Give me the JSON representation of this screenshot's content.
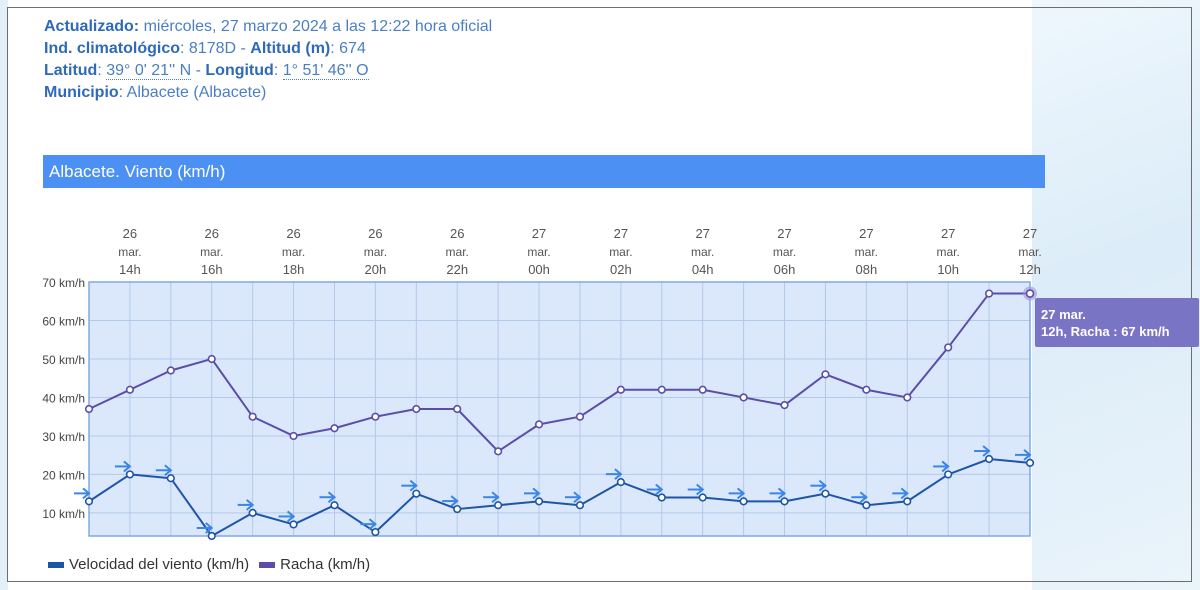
{
  "header": {
    "updated_label": "Actualizado:",
    "updated_value": " miércoles, 27 marzo 2024 a las 12:22 hora oficial",
    "station_label": "Ind. climatológico",
    "station_value": ": 8178D - ",
    "altitude_label": "Altitud (m)",
    "altitude_value": ": 674",
    "lat_label": "Latitud",
    "lat_sep": ": ",
    "lat_value": "39° 0' 21'' N",
    "lon_sep": " - ",
    "lon_label": "Longitud",
    "lon_colon": ": ",
    "lon_value": "1° 51' 46'' O",
    "municipio_label": "Municipio",
    "municipio_value": ":   Albacete (Albacete)"
  },
  "chart_title": "Albacete. Viento (km/h)",
  "tooltip": {
    "line1": "27 mar.",
    "line2": "12h, Racha : 67 km/h"
  },
  "legend": [
    {
      "label": "Velocidad del viento (km/h)",
      "color": "#1f55a8"
    },
    {
      "label": "Racha (km/h)",
      "color": "#5a4ea8"
    }
  ],
  "colors": {
    "plot_bg": "#dbe8fb",
    "plot_border": "#7fa9e8",
    "grid": "#b3c9e8",
    "wind": "#1f55a8",
    "gust": "#5a4ea8",
    "arrow": "#3a86e6"
  },
  "chart_data": {
    "type": "line",
    "x_top_labels": [
      [
        "26",
        "mar.",
        "14h"
      ],
      [
        "26",
        "mar.",
        "16h"
      ],
      [
        "26",
        "mar.",
        "18h"
      ],
      [
        "26",
        "mar.",
        "20h"
      ],
      [
        "26",
        "mar.",
        "22h"
      ],
      [
        "27",
        "mar.",
        "00h"
      ],
      [
        "27",
        "mar.",
        "02h"
      ],
      [
        "27",
        "mar.",
        "04h"
      ],
      [
        "27",
        "mar.",
        "06h"
      ],
      [
        "27",
        "mar.",
        "08h"
      ],
      [
        "27",
        "mar.",
        "10h"
      ],
      [
        "27",
        "mar.",
        "12h"
      ]
    ],
    "y_ticks": [
      "10 km/h",
      "20 km/h",
      "30 km/h",
      "40 km/h",
      "50 km/h",
      "60 km/h",
      "70 km/h"
    ],
    "ylim": [
      4,
      70
    ],
    "x_hours": [
      13,
      14,
      15,
      16,
      17,
      18,
      19,
      20,
      21,
      22,
      23,
      24,
      25,
      26,
      27,
      28,
      29,
      30,
      31,
      32,
      33,
      34,
      35,
      36
    ],
    "series": [
      {
        "name": "Velocidad del viento (km/h)",
        "values": [
          13,
          20,
          19,
          4,
          10,
          7,
          12,
          5,
          15,
          11,
          12,
          13,
          12,
          18,
          14,
          14,
          13,
          13,
          15,
          12,
          13,
          20,
          24,
          23
        ],
        "direction": "W"
      },
      {
        "name": "Racha (km/h)",
        "values": [
          37,
          42,
          47,
          50,
          35,
          30,
          32,
          35,
          37,
          37,
          26,
          33,
          35,
          42,
          42,
          42,
          40,
          38,
          46,
          42,
          40,
          53,
          67,
          67
        ]
      }
    ]
  }
}
